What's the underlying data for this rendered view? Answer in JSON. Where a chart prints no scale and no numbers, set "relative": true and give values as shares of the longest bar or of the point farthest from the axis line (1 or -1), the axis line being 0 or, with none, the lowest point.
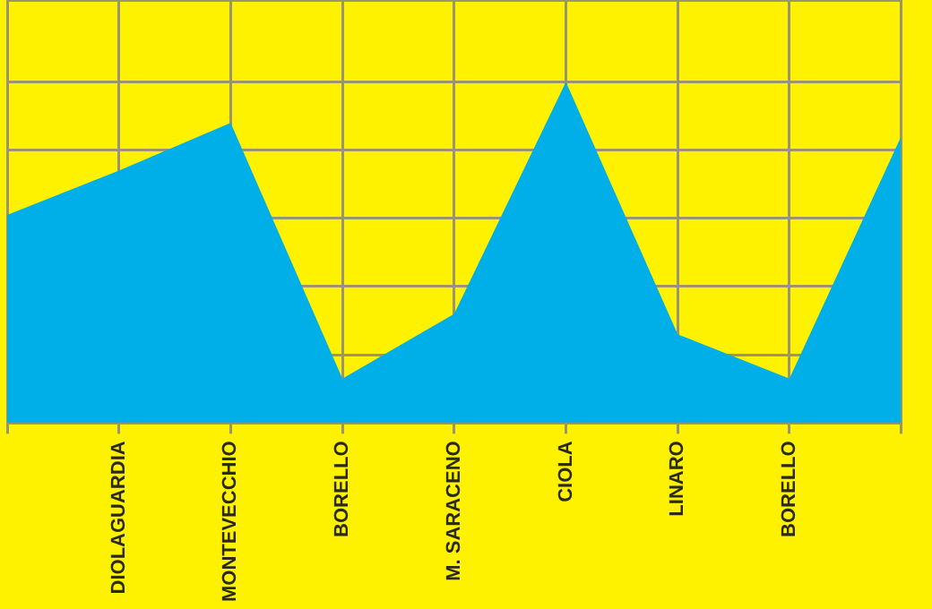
{
  "chart_data": {
    "type": "area",
    "relative": true,
    "grid": true,
    "legend": false,
    "categories": [
      null,
      "DIOLAGUARDIA",
      "MONTEVECCHIO",
      "BORELLO",
      "M. SARACENO",
      "CIOLA",
      "LINARO",
      "BORELLO",
      null
    ],
    "series": [
      {
        "color": "#00aee8",
        "values": [
          0.61,
          0.74,
          0.88,
          0.13,
          0.32,
          1,
          0.26,
          0.13,
          0.84
        ]
      }
    ]
  }
}
